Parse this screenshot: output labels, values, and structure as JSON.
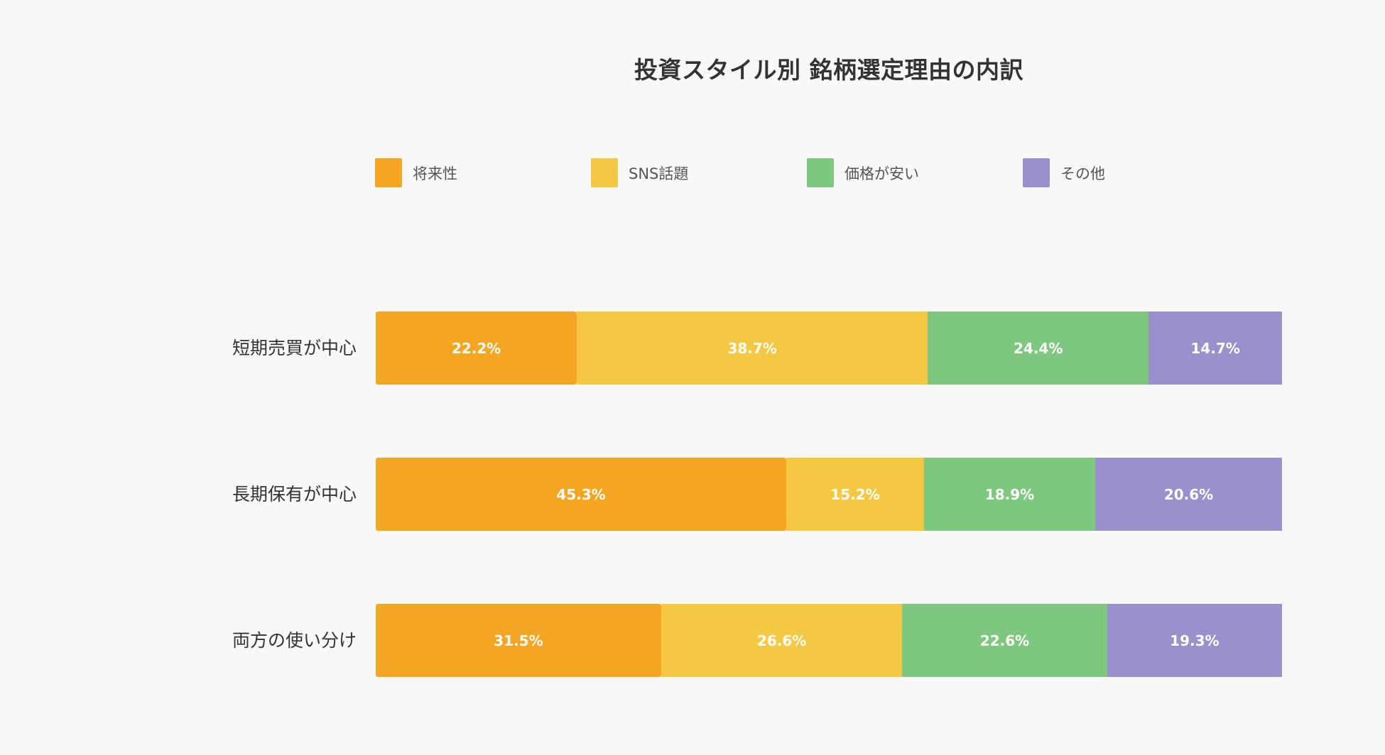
{
  "chart_data": {
    "type": "bar",
    "orientation": "horizontal",
    "stacked": true,
    "percent": true,
    "title": "投資スタイル別 銘柄選定理由の内訳",
    "xlabel": "",
    "ylabel": "",
    "xlim": [
      0,
      100
    ],
    "grid": false,
    "legend_position": "top",
    "categories": [
      "短期売買が中心",
      "長期保有が中心",
      "両方の使い分け"
    ],
    "series": [
      {
        "name": "将来性",
        "color": "#F4A623",
        "values": [
          22.2,
          45.3,
          31.5
        ]
      },
      {
        "name": "SNS話題",
        "color": "#F4C842",
        "values": [
          38.7,
          15.2,
          26.6
        ]
      },
      {
        "name": "価格が安い",
        "color": "#7DC87E",
        "values": [
          24.4,
          18.9,
          22.6
        ]
      },
      {
        "name": "その他",
        "color": "#9B8FCC",
        "values": [
          14.7,
          20.6,
          19.3
        ]
      }
    ],
    "data_labels": [
      [
        "22.2%",
        "38.7%",
        "24.4%",
        "14.7%"
      ],
      [
        "45.3%",
        "15.2%",
        "18.9%",
        "20.6%"
      ],
      [
        "31.5%",
        "26.6%",
        "22.6%",
        "19.3%"
      ]
    ]
  },
  "title": "投資スタイル別 銘柄選定理由の内訳",
  "legend": [
    {
      "label": "将来性",
      "color": "#F4A623"
    },
    {
      "label": "SNS話題",
      "color": "#F4C842"
    },
    {
      "label": "価格が安い",
      "color": "#7DC87E"
    },
    {
      "label": "その他",
      "color": "#9B8FCC"
    }
  ],
  "rows": [
    {
      "label": "短期売買が中心",
      "segments": [
        {
          "value": 22.2,
          "text": "22.2%",
          "color": "#F4A623"
        },
        {
          "value": 38.7,
          "text": "38.7%",
          "color": "#F4C842"
        },
        {
          "value": 24.4,
          "text": "24.4%",
          "color": "#7DC87E"
        },
        {
          "value": 14.7,
          "text": "14.7%",
          "color": "#9B8FCC"
        }
      ]
    },
    {
      "label": "長期保有が中心",
      "segments": [
        {
          "value": 45.3,
          "text": "45.3%",
          "color": "#F4A623"
        },
        {
          "value": 15.2,
          "text": "15.2%",
          "color": "#F4C842"
        },
        {
          "value": 18.9,
          "text": "18.9%",
          "color": "#7DC87E"
        },
        {
          "value": 20.6,
          "text": "20.6%",
          "color": "#9B8FCC"
        }
      ]
    },
    {
      "label": "両方の使い分け",
      "segments": [
        {
          "value": 31.5,
          "text": "31.5%",
          "color": "#F4A623"
        },
        {
          "value": 26.6,
          "text": "26.6%",
          "color": "#F4C842"
        },
        {
          "value": 22.6,
          "text": "22.6%",
          "color": "#7DC87E"
        },
        {
          "value": 19.3,
          "text": "19.3%",
          "color": "#9B8FCC"
        }
      ]
    }
  ]
}
